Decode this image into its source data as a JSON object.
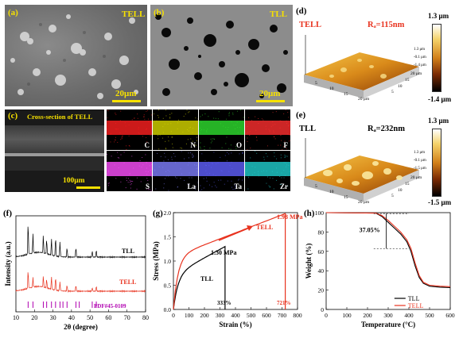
{
  "panel_a": {
    "label": "(a)",
    "tag": "TELL",
    "scale": "20μm"
  },
  "panel_b": {
    "label": "(b)",
    "tag": "TLL",
    "scale": "20μm"
  },
  "panel_c": {
    "label": "(c)",
    "title": "Cross-section of TELL",
    "scale": "100μm",
    "maps": [
      {
        "el": "C",
        "color": "#ff2020"
      },
      {
        "el": "N",
        "color": "#d8d800"
      },
      {
        "el": "O",
        "color": "#30e030"
      },
      {
        "el": "F",
        "color": "#ff3030"
      },
      {
        "el": "S",
        "color": "#ff50ff"
      },
      {
        "el": "La",
        "color": "#8080ff"
      },
      {
        "el": "Ta",
        "color": "#6060ff"
      },
      {
        "el": "Zr",
        "color": "#20d0d0"
      }
    ]
  },
  "panel_d": {
    "label": "(d)",
    "sample": "TELL",
    "ra": "Rₐ=115nm",
    "cbar_top": "1.3 μm",
    "cbar_bottom": "-1.4 μm",
    "z_ticks": [
      "1.3 μm",
      "-0.1 μm",
      "-1.4 μm"
    ],
    "ax_ticks_r": [
      "20 μm",
      "15",
      "10",
      "5"
    ],
    "ax_ticks_l": [
      "20 μm",
      "15",
      "10",
      "5"
    ]
  },
  "panel_e": {
    "label": "(e)",
    "sample": "TLL",
    "ra": "Rₐ=232nm",
    "cbar_top": "1.3 μm",
    "cbar_bottom": "-1.5 μm",
    "z_ticks": [
      "1.3 μm",
      "-0.1 μm",
      "-1.5 μm"
    ],
    "ax_ticks_r": [
      "20 μm",
      "15",
      "10",
      "5"
    ],
    "ax_ticks_l": [
      "20 μm",
      "15",
      "10",
      "5"
    ]
  },
  "chart_data": [
    {
      "panel": "(f)",
      "type": "line",
      "xlabel": "2θ (degree)",
      "ylabel": "Intensity (a.u.)",
      "xlim": [
        10,
        80
      ],
      "x_ticks": [
        10,
        20,
        30,
        40,
        50,
        60,
        70,
        80
      ],
      "series": [
        {
          "name": "TLL",
          "color": "#000000",
          "peaks": [
            [
              16.6,
              1.0
            ],
            [
              19.2,
              0.6
            ],
            [
              24.8,
              0.55
            ],
            [
              26.6,
              0.45
            ],
            [
              29.2,
              0.5
            ],
            [
              31.4,
              0.6
            ],
            [
              33.8,
              0.45
            ],
            [
              37.6,
              0.3
            ],
            [
              42.4,
              0.3
            ],
            [
              51.2,
              0.2
            ],
            [
              53.4,
              0.22
            ]
          ]
        },
        {
          "name": "TELL",
          "color": "#e8321e",
          "peaks": [
            [
              16.6,
              0.75
            ],
            [
              19.2,
              0.4
            ],
            [
              24.8,
              0.45
            ],
            [
              26.6,
              0.35
            ],
            [
              29.2,
              0.5
            ],
            [
              31.4,
              0.55
            ],
            [
              33.8,
              0.35
            ],
            [
              37.6,
              0.25
            ],
            [
              42.4,
              0.25
            ],
            [
              51.2,
              0.15
            ],
            [
              53.4,
              0.2
            ]
          ]
        },
        {
          "name": "PDF#45-0109",
          "color": "#b000b0",
          "sticks": [
            16.6,
            19.2,
            24.8,
            26.6,
            29.2,
            31.4,
            33.8,
            35.4,
            37.6,
            42.4,
            44.2,
            51.2,
            53.4
          ]
        }
      ]
    },
    {
      "panel": "(g)",
      "type": "line",
      "xlabel": "Strain (%)",
      "ylabel": "Stress (MPa)",
      "xlim": [
        0,
        800
      ],
      "ylim": [
        0,
        2.0
      ],
      "x_ticks": [
        0,
        100,
        200,
        300,
        400,
        500,
        600,
        700,
        800
      ],
      "y_ticks": [
        0.0,
        0.5,
        1.0,
        1.5,
        2.0
      ],
      "series": [
        {
          "name": "TLL",
          "color": "#000000",
          "break_strain": 333,
          "break_stress": 1.3
        },
        {
          "name": "TELL",
          "color": "#e8321e",
          "break_strain": 721,
          "break_stress": 1.98
        }
      ],
      "annotations": {
        "tll_stress": "1.30 MPa",
        "tell_stress": "1.98 MPa",
        "tll_strain": "333%",
        "tell_strain": "721%",
        "tll": "TLL",
        "tell": "TELL"
      }
    },
    {
      "panel": "(h)",
      "type": "line",
      "xlabel": "Temperature (°C)",
      "ylabel": "Weight (%)",
      "xlim": [
        0,
        600
      ],
      "ylim": [
        0,
        100
      ],
      "x_ticks": [
        0,
        100,
        200,
        300,
        400,
        500,
        600
      ],
      "y_ticks": [
        0,
        20,
        40,
        60,
        80,
        100
      ],
      "series": [
        {
          "name": "TLL",
          "color": "#000000",
          "points": [
            [
              0,
              100
            ],
            [
              240,
              99.5
            ],
            [
              270,
              96
            ],
            [
              300,
              90
            ],
            [
              330,
              84
            ],
            [
              360,
              78
            ],
            [
              390,
              70
            ],
            [
              410,
              60
            ],
            [
              430,
              45
            ],
            [
              450,
              33
            ],
            [
              470,
              27
            ],
            [
              500,
              24
            ],
            [
              550,
              23
            ],
            [
              600,
              22.5
            ]
          ]
        },
        {
          "name": "TELL",
          "color": "#e8321e",
          "points": [
            [
              0,
              100
            ],
            [
              240,
              99.5
            ],
            [
              270,
              97
            ],
            [
              300,
              92
            ],
            [
              330,
              86
            ],
            [
              360,
              80
            ],
            [
              390,
              72
            ],
            [
              410,
              63
            ],
            [
              430,
              48
            ],
            [
              450,
              35
            ],
            [
              470,
              28
            ],
            [
              500,
              25
            ],
            [
              550,
              24
            ],
            [
              600,
              23.5
            ]
          ]
        }
      ],
      "annotation": "37.05%",
      "legend": [
        "TLL",
        "TELL"
      ]
    }
  ]
}
